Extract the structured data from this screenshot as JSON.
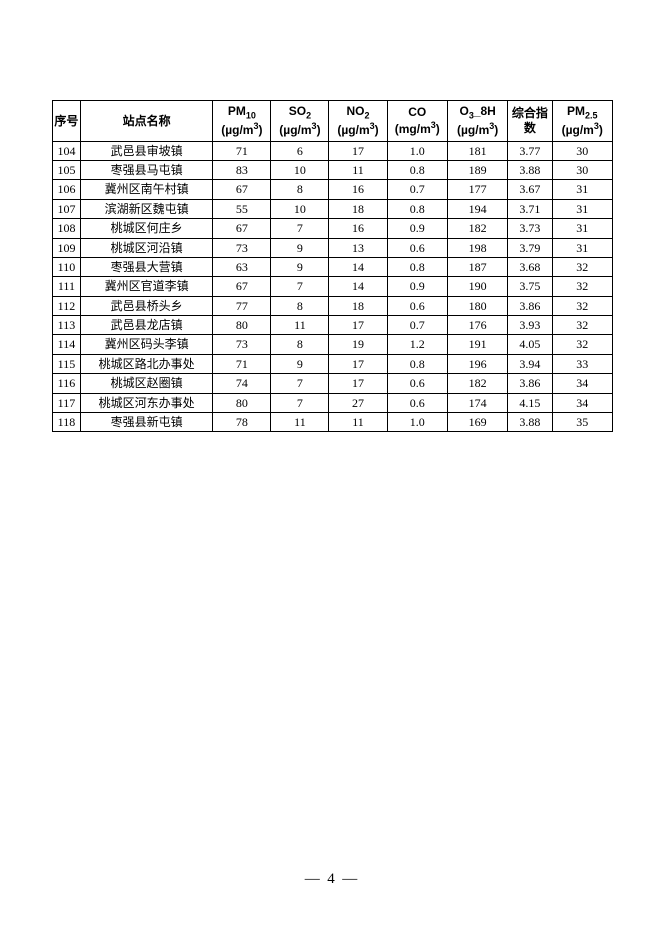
{
  "table": {
    "columns": {
      "seq": {
        "label": "序号"
      },
      "name": {
        "label": "站点名称"
      },
      "pm10": {
        "prefix": "PM",
        "sub": "10",
        "unit_prefix": "(µg/m",
        "unit_sup": "3",
        "unit_suffix": ")"
      },
      "so2": {
        "prefix": "SO",
        "sub": "2",
        "unit_prefix": "(µg/m",
        "unit_sup": "3",
        "unit_suffix": ")"
      },
      "no2": {
        "prefix": "NO",
        "sub": "2",
        "unit_prefix": "(µg/m",
        "unit_sup": "3",
        "unit_suffix": ")"
      },
      "co": {
        "prefix": "CO",
        "unit_prefix": "(mg/m",
        "unit_sup": "3",
        "unit_suffix": ")"
      },
      "o3": {
        "prefix": "O",
        "sub": "3",
        "suffix": "_8H",
        "unit_prefix": "(µg/m",
        "unit_sup": "3",
        "unit_suffix": ")"
      },
      "idx": {
        "label": "综合指数"
      },
      "pm25": {
        "prefix": "PM",
        "sub": "2.5",
        "unit_prefix": "(µg/m",
        "unit_sup": "3",
        "unit_suffix": ")"
      }
    },
    "rows": [
      {
        "seq": "104",
        "name": "武邑县审坡镇",
        "pm10": "71",
        "so2": "6",
        "no2": "17",
        "co": "1.0",
        "o3": "181",
        "idx": "3.77",
        "pm25": "30"
      },
      {
        "seq": "105",
        "name": "枣强县马屯镇",
        "pm10": "83",
        "so2": "10",
        "no2": "11",
        "co": "0.8",
        "o3": "189",
        "idx": "3.88",
        "pm25": "30"
      },
      {
        "seq": "106",
        "name": "冀州区南午村镇",
        "pm10": "67",
        "so2": "8",
        "no2": "16",
        "co": "0.7",
        "o3": "177",
        "idx": "3.67",
        "pm25": "31"
      },
      {
        "seq": "107",
        "name": "滨湖新区魏屯镇",
        "pm10": "55",
        "so2": "10",
        "no2": "18",
        "co": "0.8",
        "o3": "194",
        "idx": "3.71",
        "pm25": "31"
      },
      {
        "seq": "108",
        "name": "桃城区何庄乡",
        "pm10": "67",
        "so2": "7",
        "no2": "16",
        "co": "0.9",
        "o3": "182",
        "idx": "3.73",
        "pm25": "31"
      },
      {
        "seq": "109",
        "name": "桃城区河沿镇",
        "pm10": "73",
        "so2": "9",
        "no2": "13",
        "co": "0.6",
        "o3": "198",
        "idx": "3.79",
        "pm25": "31"
      },
      {
        "seq": "110",
        "name": "枣强县大营镇",
        "pm10": "63",
        "so2": "9",
        "no2": "14",
        "co": "0.8",
        "o3": "187",
        "idx": "3.68",
        "pm25": "32"
      },
      {
        "seq": "111",
        "name": "冀州区官道李镇",
        "pm10": "67",
        "so2": "7",
        "no2": "14",
        "co": "0.9",
        "o3": "190",
        "idx": "3.75",
        "pm25": "32"
      },
      {
        "seq": "112",
        "name": "武邑县桥头乡",
        "pm10": "77",
        "so2": "8",
        "no2": "18",
        "co": "0.6",
        "o3": "180",
        "idx": "3.86",
        "pm25": "32"
      },
      {
        "seq": "113",
        "name": "武邑县龙店镇",
        "pm10": "80",
        "so2": "11",
        "no2": "17",
        "co": "0.7",
        "o3": "176",
        "idx": "3.93",
        "pm25": "32"
      },
      {
        "seq": "114",
        "name": "冀州区码头李镇",
        "pm10": "73",
        "so2": "8",
        "no2": "19",
        "co": "1.2",
        "o3": "191",
        "idx": "4.05",
        "pm25": "32"
      },
      {
        "seq": "115",
        "name": "桃城区路北办事处",
        "pm10": "71",
        "so2": "9",
        "no2": "17",
        "co": "0.8",
        "o3": "196",
        "idx": "3.94",
        "pm25": "33"
      },
      {
        "seq": "116",
        "name": "桃城区赵圈镇",
        "pm10": "74",
        "so2": "7",
        "no2": "17",
        "co": "0.6",
        "o3": "182",
        "idx": "3.86",
        "pm25": "34"
      },
      {
        "seq": "117",
        "name": "桃城区河东办事处",
        "pm10": "80",
        "so2": "7",
        "no2": "27",
        "co": "0.6",
        "o3": "174",
        "idx": "4.15",
        "pm25": "34"
      },
      {
        "seq": "118",
        "name": "枣强县新屯镇",
        "pm10": "78",
        "so2": "11",
        "no2": "11",
        "co": "1.0",
        "o3": "169",
        "idx": "3.88",
        "pm25": "35"
      }
    ]
  },
  "page_number": {
    "dash_l": "—",
    "num": "4",
    "dash_r": "—"
  }
}
